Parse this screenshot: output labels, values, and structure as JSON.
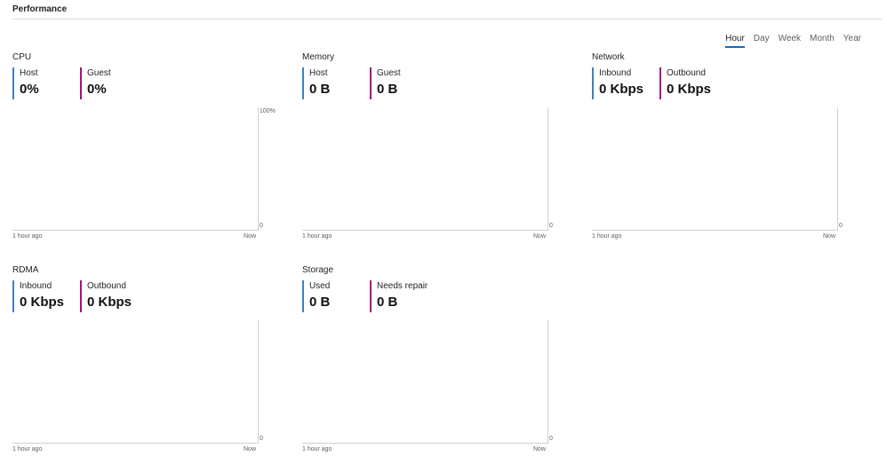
{
  "header": {
    "title": "Performance"
  },
  "range_tabs": [
    "Hour",
    "Day",
    "Week",
    "Month",
    "Year"
  ],
  "panels": {
    "cpu": {
      "title": "CPU",
      "metrics": [
        {
          "label": "Host",
          "value": "0%"
        },
        {
          "label": "Guest",
          "value": "0%"
        }
      ],
      "axis_max": "100%",
      "axis_min": "0",
      "time_start": "1 hour ago",
      "time_end": "Now"
    },
    "memory": {
      "title": "Memory",
      "metrics": [
        {
          "label": "Host",
          "value": "0 B"
        },
        {
          "label": "Guest",
          "value": "0 B"
        }
      ],
      "axis_min": "0",
      "time_start": "1 hour ago",
      "time_end": "Now"
    },
    "network": {
      "title": "Network",
      "metrics": [
        {
          "label": "Inbound",
          "value": "0 Kbps"
        },
        {
          "label": "Outbound",
          "value": "0 Kbps"
        }
      ],
      "axis_min": "0",
      "time_start": "1 hour ago",
      "time_end": "Now"
    },
    "rdma": {
      "title": "RDMA",
      "metrics": [
        {
          "label": "Inbound",
          "value": "0 Kbps"
        },
        {
          "label": "Outbound",
          "value": "0 Kbps"
        }
      ],
      "axis_min": "0",
      "time_start": "1 hour ago",
      "time_end": "Now"
    },
    "storage": {
      "title": "Storage",
      "metrics": [
        {
          "label": "Used",
          "value": "0 B"
        },
        {
          "label": "Needs repair",
          "value": "0 B"
        }
      ],
      "axis_min": "0",
      "time_start": "1 hour ago",
      "time_end": "Now"
    }
  },
  "colors": {
    "primary_series": "#3b83c4",
    "secondary_series": "#a7117f",
    "active_tab_underline": "#0f6cbd"
  }
}
